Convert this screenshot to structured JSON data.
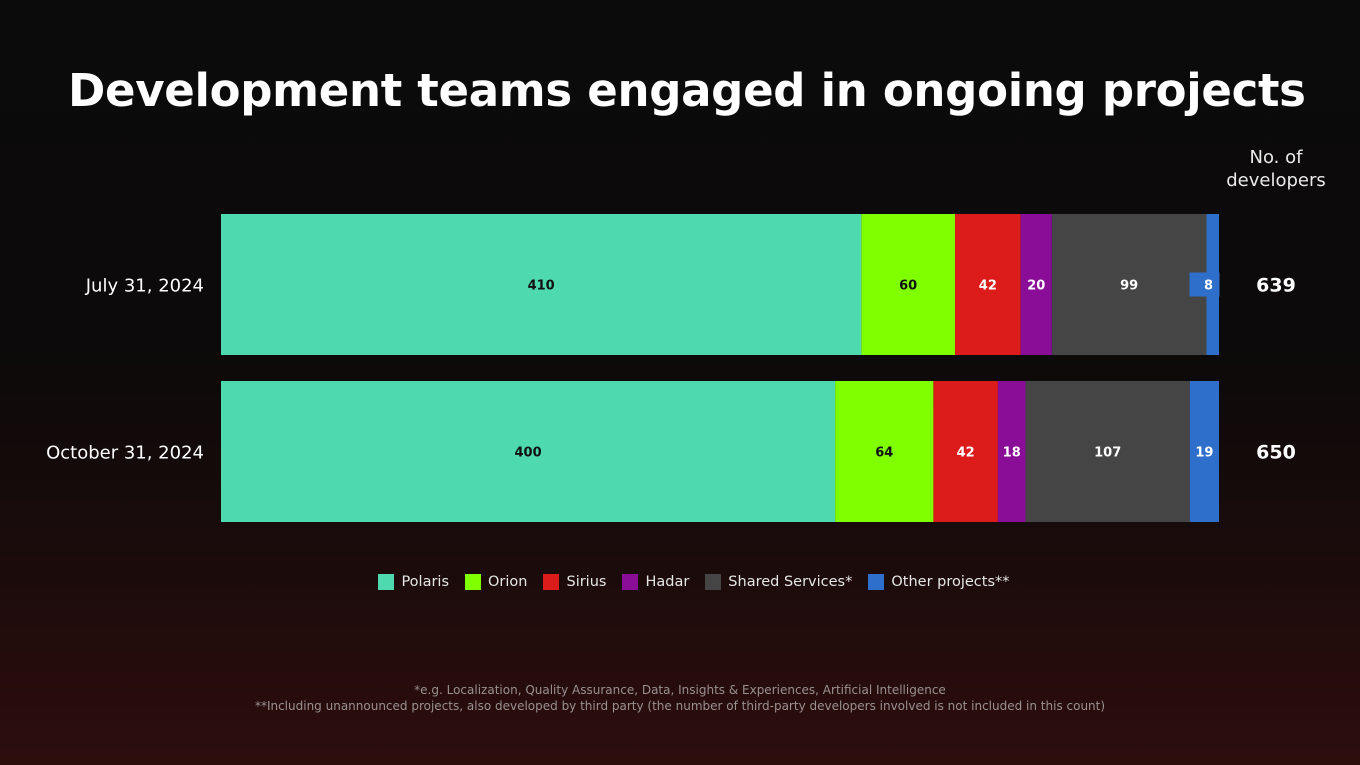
{
  "title": "Development teams engaged in ongoing projects",
  "total_header": "No. of developers",
  "chart_data": {
    "type": "bar",
    "orientation": "horizontal",
    "stacked": true,
    "categories": [
      "July 31, 2024",
      "October 31, 2024"
    ],
    "series": [
      {
        "name": "Polaris",
        "color": "#4fd9ae",
        "label_color": "#111111",
        "values": [
          410,
          400
        ]
      },
      {
        "name": "Orion",
        "color": "#80ff00",
        "label_color": "#111111",
        "values": [
          60,
          64
        ]
      },
      {
        "name": "Sirius",
        "color": "#dc1b1b",
        "label_color": "#ffffff",
        "values": [
          42,
          42
        ]
      },
      {
        "name": "Hadar",
        "color": "#8a0d98",
        "label_color": "#ffffff",
        "values": [
          20,
          18
        ]
      },
      {
        "name": "Shared Services*",
        "color": "#454545",
        "label_color": "#ffffff",
        "values": [
          99,
          107
        ]
      },
      {
        "name": "Other projects**",
        "color": "#2f6fcc",
        "label_color": "#ffffff",
        "values": [
          8,
          19
        ]
      }
    ],
    "totals": [
      639,
      650
    ],
    "normalized": true,
    "legend_position": "bottom",
    "grid": false
  },
  "footnotes": [
    "*e.g. Localization, Quality Assurance, Data, Insights & Experiences, Artificial Intelligence",
    "**Including unannounced projects, also developed by third party (the number of third-party developers involved is not included in this count)"
  ]
}
